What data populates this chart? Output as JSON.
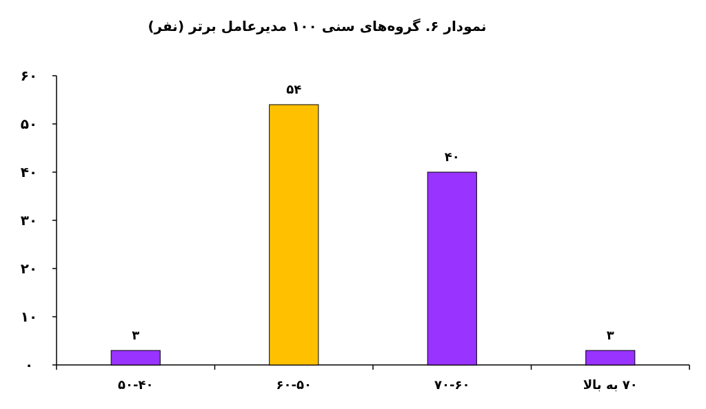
{
  "chart_data": {
    "type": "bar",
    "title": "نمودار ۶.  گروه‌های سنی ۱۰۰ مدیرعامل برتر (نفر)",
    "categories": [
      "۵۰-۴۰",
      "۶۰-۵۰",
      "۷۰-۶۰",
      "۷۰ به بالا"
    ],
    "values": [
      3,
      54,
      40,
      3
    ],
    "colors": [
      "#9933ff",
      "#ffc000",
      "#9933ff",
      "#9933ff"
    ],
    "value_labels": [
      "۳",
      "۵۴",
      "۴۰",
      "۳"
    ],
    "ylim": [
      0,
      60
    ],
    "yticks": [
      {
        "value": 0,
        "label": "۰"
      },
      {
        "value": 10,
        "label": "۱۰"
      },
      {
        "value": 20,
        "label": "۲۰"
      },
      {
        "value": 30,
        "label": "۳۰"
      },
      {
        "value": 40,
        "label": "۴۰"
      },
      {
        "value": 50,
        "label": "۵۰"
      },
      {
        "value": 60,
        "label": "۶۰"
      }
    ]
  }
}
